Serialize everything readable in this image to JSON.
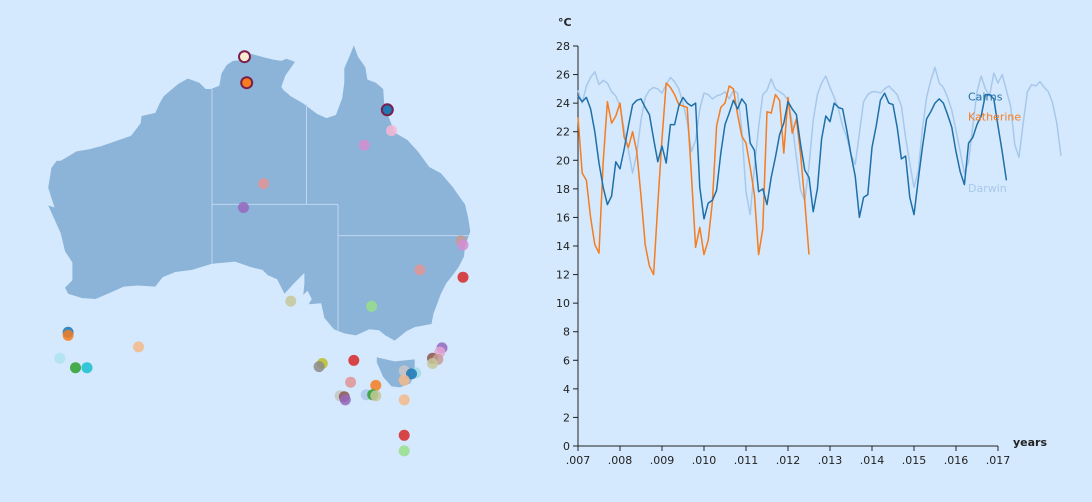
{
  "theme": {
    "background": "#d4e9fd",
    "land": "#8cb4d9",
    "border": "#bfd6ee",
    "axis": "#222222"
  },
  "map": {
    "stations": [
      {
        "name": "",
        "lon": 132.1,
        "lat": -11.8,
        "color": "#fdebd0",
        "stroke": "#7b1e4b",
        "highlight": true
      },
      {
        "name": "",
        "lon": 132.3,
        "lat": -14.3,
        "color": "#f57c1f",
        "stroke": "#7b1e4b",
        "highlight": true
      },
      {
        "name": "",
        "lon": 145.7,
        "lat": -16.9,
        "color": "#1f77b4",
        "stroke": "#7b1e4b",
        "highlight": true
      },
      {
        "name": "",
        "lon": 143.5,
        "lat": -20.3,
        "color": "#d48dd0"
      },
      {
        "name": "",
        "lon": 146.1,
        "lat": -18.9,
        "color": "#f7b6d2"
      },
      {
        "name": "",
        "lon": 133.9,
        "lat": -24.0,
        "color": "#e29495"
      },
      {
        "name": "",
        "lon": 132.0,
        "lat": -26.3,
        "color": "#9467bd"
      },
      {
        "name": "",
        "lon": 152.7,
        "lat": -29.5,
        "color": "#c49c94"
      },
      {
        "name": "",
        "lon": 152.9,
        "lat": -29.9,
        "color": "#d48dd0"
      },
      {
        "name": "",
        "lon": 148.8,
        "lat": -32.3,
        "color": "#e29495"
      },
      {
        "name": "",
        "lon": 152.9,
        "lat": -33.0,
        "color": "#d62728"
      },
      {
        "name": "",
        "lon": 136.5,
        "lat": -35.3,
        "color": "#c7c79a"
      },
      {
        "name": "",
        "lon": 144.2,
        "lat": -35.8,
        "color": "#98df8a"
      },
      {
        "name": "",
        "lon": 115.3,
        "lat": -38.3,
        "color": "#1f77b4"
      },
      {
        "name": "",
        "lon": 115.3,
        "lat": -38.6,
        "color": "#f57c1f"
      },
      {
        "name": "",
        "lon": 122.0,
        "lat": -39.7,
        "color": "#f4b98a"
      },
      {
        "name": "",
        "lon": 114.5,
        "lat": -40.8,
        "color": "#aee3ef"
      },
      {
        "name": "",
        "lon": 116.0,
        "lat": -41.7,
        "color": "#2ca02c"
      },
      {
        "name": "",
        "lon": 117.1,
        "lat": -41.7,
        "color": "#17becf"
      },
      {
        "name": "",
        "lon": 139.5,
        "lat": -41.3,
        "color": "#bcbd22"
      },
      {
        "name": "",
        "lon": 139.2,
        "lat": -41.6,
        "color": "#8c8c8c"
      },
      {
        "name": "",
        "lon": 142.5,
        "lat": -41.0,
        "color": "#d62728"
      },
      {
        "name": "",
        "lon": 150.9,
        "lat": -39.8,
        "color": "#9467bd"
      },
      {
        "name": "",
        "lon": 150.7,
        "lat": -40.2,
        "color": "#e4a7d4"
      },
      {
        "name": "",
        "lon": 150.0,
        "lat": -40.8,
        "color": "#8c564b"
      },
      {
        "name": "",
        "lon": 150.5,
        "lat": -40.9,
        "color": "#c49c94"
      },
      {
        "name": "",
        "lon": 150.0,
        "lat": -41.3,
        "color": "#c7c79a"
      },
      {
        "name": "",
        "lon": 147.3,
        "lat": -42.0,
        "color": "#c7c7c7"
      },
      {
        "name": "",
        "lon": 148.4,
        "lat": -42.2,
        "color": "#9edae5"
      },
      {
        "name": "",
        "lon": 148.0,
        "lat": -42.3,
        "color": "#1f77b4"
      },
      {
        "name": "",
        "lon": 147.3,
        "lat": -42.9,
        "color": "#f4b98a"
      },
      {
        "name": "",
        "lon": 142.2,
        "lat": -43.1,
        "color": "#e29495"
      },
      {
        "name": "",
        "lon": 144.6,
        "lat": -43.4,
        "color": "#f57c1f"
      },
      {
        "name": "",
        "lon": 143.7,
        "lat": -44.3,
        "color": "#aec7e8"
      },
      {
        "name": "",
        "lon": 144.3,
        "lat": -44.3,
        "color": "#2ca02c"
      },
      {
        "name": "",
        "lon": 144.6,
        "lat": -44.4,
        "color": "#c7c79a"
      },
      {
        "name": "",
        "lon": 141.2,
        "lat": -44.4,
        "color": "#c7c7c7"
      },
      {
        "name": "",
        "lon": 141.6,
        "lat": -44.5,
        "color": "#8c564b"
      },
      {
        "name": "",
        "lon": 141.7,
        "lat": -44.8,
        "color": "#9467bd"
      },
      {
        "name": "",
        "lon": 147.3,
        "lat": -44.8,
        "color": "#f4b98a"
      },
      {
        "name": "",
        "lon": 147.3,
        "lat": -48.2,
        "color": "#d62728"
      },
      {
        "name": "",
        "lon": 147.3,
        "lat": -49.7,
        "color": "#98df8a"
      }
    ]
  },
  "chart_data": {
    "type": "line",
    "title": "",
    "ylabel": "°C",
    "xlabel": "years",
    "ylim": [
      0,
      28
    ],
    "xlim": [
      0.007,
      0.017
    ],
    "y_ticks": [
      "0",
      "2",
      "4",
      "6",
      "8",
      "10",
      "12",
      "14",
      "16",
      "18",
      "20",
      "22",
      "24",
      "26",
      "28"
    ],
    "x_ticks": [
      ".007",
      ".008",
      ".009",
      ".010",
      ".011",
      ".012",
      ".013",
      ".014",
      ".015",
      ".016",
      ".017"
    ],
    "legend_position": "right",
    "series": [
      {
        "name": "Darwin",
        "color": "#a8c8ea",
        "x_start": 0.007,
        "x_step": 0.0001,
        "values": [
          24.9,
          24.0,
          25.2,
          25.8,
          26.2,
          25.3,
          25.6,
          25.4,
          24.8,
          24.5,
          23.8,
          22.1,
          20.7,
          19.1,
          20.5,
          22.8,
          24.4,
          24.9,
          25.1,
          25.0,
          24.7,
          25.3,
          25.8,
          25.5,
          25.0,
          24.0,
          22.7,
          20.6,
          21.4,
          23.6,
          24.7,
          24.6,
          24.3,
          24.5,
          24.6,
          24.8,
          24.3,
          24.9,
          24.7,
          22.1,
          17.8,
          16.2,
          19.5,
          22.3,
          24.6,
          24.9,
          25.7,
          25.0,
          24.8,
          24.6,
          24.2,
          22.6,
          20.2,
          17.9,
          17.2,
          19.6,
          22.8,
          24.6,
          25.4,
          25.9,
          25.1,
          24.4,
          23.6,
          22.4,
          21.6,
          20.4,
          19.7,
          21.9,
          24.1,
          24.6,
          24.8,
          24.8,
          24.7,
          25.0,
          25.2,
          24.9,
          24.6,
          23.8,
          21.6,
          19.8,
          18.1,
          19.2,
          22.2,
          24.4,
          25.6,
          26.5,
          25.4,
          25.1,
          24.4,
          23.5,
          22.1,
          20.6,
          19.1,
          19.9,
          22.4,
          24.8,
          25.9,
          25.0,
          24.5,
          26.1,
          25.4,
          26.0,
          24.9,
          23.8,
          21.1,
          20.2,
          22.6,
          24.8,
          25.3,
          25.2,
          25.5,
          25.1,
          24.8,
          24.0,
          22.6,
          20.3
        ]
      },
      {
        "name": "Katherine",
        "color": "#f57c1f",
        "x_start": 0.007,
        "x_step": 0.0001,
        "values": [
          23.0,
          19.1,
          18.6,
          16.0,
          14.1,
          13.5,
          19.9,
          24.1,
          22.6,
          23.1,
          24.0,
          21.6,
          20.9,
          22.0,
          20.6,
          17.5,
          14.1,
          12.6,
          12.0,
          16.9,
          21.5,
          25.4,
          25.1,
          24.6,
          23.9,
          23.8,
          23.7,
          19.0,
          13.9,
          15.3,
          13.4,
          14.4,
          17.1,
          22.4,
          23.7,
          24.0,
          25.2,
          25.0,
          23.2,
          21.7,
          21.2,
          19.5,
          17.6,
          13.4,
          15.2,
          23.4,
          23.3,
          24.6,
          24.2,
          20.5,
          24.4,
          21.9,
          22.9,
          20.4,
          17.1,
          13.4
        ]
      },
      {
        "name": "Cairns",
        "color": "#1f6fa8",
        "x_start": 0.007,
        "x_step": 0.0001,
        "values": [
          24.5,
          24.1,
          24.4,
          23.6,
          22.0,
          19.8,
          18.1,
          16.9,
          17.5,
          19.9,
          19.4,
          20.8,
          22.4,
          23.9,
          24.2,
          24.3,
          23.7,
          23.2,
          21.5,
          19.9,
          21.0,
          19.8,
          22.5,
          22.5,
          23.8,
          24.4,
          24.0,
          23.8,
          24.0,
          18.1,
          15.9,
          17.0,
          17.2,
          17.9,
          20.5,
          22.5,
          23.3,
          24.2,
          23.6,
          24.3,
          23.9,
          21.2,
          20.7,
          17.8,
          18.0,
          16.9,
          18.8,
          20.2,
          21.8,
          22.6,
          24.1,
          23.6,
          23.2,
          21.1,
          19.3,
          18.8,
          16.4,
          18.0,
          21.5,
          23.1,
          22.7,
          24.0,
          23.7,
          23.6,
          22.1,
          20.4,
          18.9,
          16.0,
          17.4,
          17.6,
          20.9,
          22.4,
          24.2,
          24.7,
          24.0,
          23.9,
          22.3,
          20.1,
          20.3,
          17.4,
          16.2,
          18.6,
          20.9,
          22.9,
          23.4,
          24.0,
          24.3,
          24.0,
          23.2,
          22.3,
          20.6,
          19.2,
          18.3,
          21.2,
          21.6,
          22.5,
          23.1,
          24.6,
          24.6,
          24.3,
          22.4,
          20.6,
          18.6
        ]
      }
    ],
    "legend": [
      {
        "name": "Cairns",
        "color": "#1f6fa8"
      },
      {
        "name": "Katherine",
        "color": "#f57c1f"
      },
      {
        "name": "Darwin",
        "color": "#a8c8ea"
      }
    ]
  }
}
